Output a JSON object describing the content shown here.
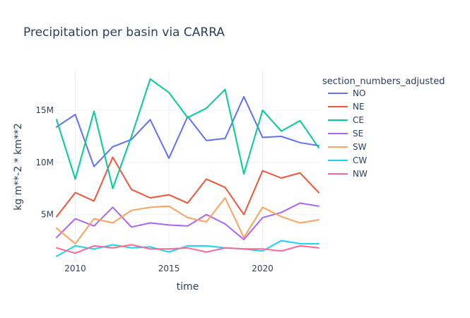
{
  "chart_data": {
    "type": "line",
    "title": "Precipitation per basin via CARRA",
    "xlabel": "time",
    "ylabel": "kg m**-2 * km**2",
    "legend_title": "section_numbers_adjusted",
    "legend_position": "top-right",
    "grid": true,
    "xlim": [
      2009,
      2023
    ],
    "ylim": [
      500000,
      18800000
    ],
    "x_ticks": [
      2010,
      2015,
      2020
    ],
    "x_tick_labels": [
      "2010",
      "2015",
      "2020"
    ],
    "y_ticks": [
      5000000,
      10000000,
      15000000
    ],
    "y_tick_labels": [
      "5M",
      "10M",
      "15M"
    ],
    "x": [
      2009,
      2010,
      2011,
      2012,
      2013,
      2014,
      2015,
      2016,
      2017,
      2018,
      2019,
      2020,
      2021,
      2022,
      2023
    ],
    "series": [
      {
        "name": "NO",
        "color": "#636efa",
        "values": [
          13400000,
          14600000,
          9600000,
          11500000,
          12200000,
          14100000,
          10400000,
          14400000,
          12100000,
          12300000,
          16300000,
          12400000,
          12500000,
          11900000,
          11600000
        ]
      },
      {
        "name": "NE",
        "color": "#ef553b",
        "values": [
          4800000,
          7100000,
          6300000,
          10500000,
          7400000,
          6600000,
          6900000,
          6100000,
          8400000,
          7600000,
          5000000,
          9200000,
          8500000,
          9000000,
          7100000
        ]
      },
      {
        "name": "CE",
        "color": "#00cc96",
        "values": [
          14100000,
          8400000,
          14900000,
          7500000,
          12500000,
          18000000,
          16700000,
          14300000,
          15200000,
          17000000,
          8900000,
          15000000,
          13000000,
          14000000,
          11400000
        ]
      },
      {
        "name": "SE",
        "color": "#ab63fa",
        "values": [
          2800000,
          4600000,
          3900000,
          5700000,
          3800000,
          4200000,
          4000000,
          3900000,
          5000000,
          4100000,
          2600000,
          4700000,
          5200000,
          6100000,
          5800000
        ]
      },
      {
        "name": "SW",
        "color": "#ffa15a",
        "values": [
          3700000,
          2200000,
          4600000,
          4200000,
          5400000,
          5700000,
          5800000,
          4700000,
          4300000,
          6600000,
          2800000,
          5700000,
          4800000,
          4200000,
          4500000
        ]
      },
      {
        "name": "CW",
        "color": "#19d3f3",
        "values": [
          1000000,
          2000000,
          1700000,
          2100000,
          1800000,
          1900000,
          1400000,
          2000000,
          2000000,
          1800000,
          1700000,
          1500000,
          2500000,
          2200000,
          2200000
        ]
      },
      {
        "name": "NW",
        "color": "#ff6692",
        "values": [
          1800000,
          1300000,
          2000000,
          1800000,
          2100000,
          1700000,
          1700000,
          1800000,
          1400000,
          1800000,
          1700000,
          1700000,
          1500000,
          2000000,
          1800000
        ]
      }
    ]
  }
}
